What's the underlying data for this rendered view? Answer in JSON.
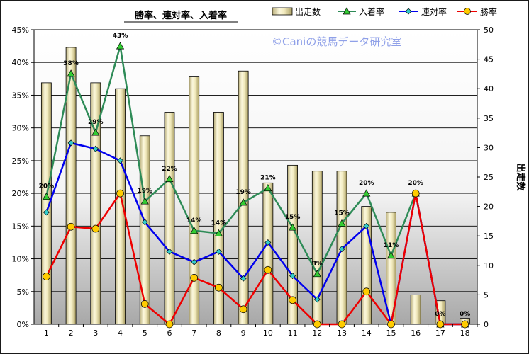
{
  "chart_data": {
    "type": "bar+line",
    "title": "勝率、連対率、入着率",
    "watermark": "©Caniの競馬データ研究室",
    "y2label": "出走数",
    "categories": [
      "1",
      "2",
      "3",
      "4",
      "5",
      "6",
      "7",
      "8",
      "9",
      "10",
      "11",
      "12",
      "13",
      "14",
      "15",
      "16",
      "17",
      "18"
    ],
    "yticks_left": [
      "0%",
      "5%",
      "10%",
      "15%",
      "20%",
      "25%",
      "30%",
      "35%",
      "40%",
      "45%"
    ],
    "yticks_right": [
      "0",
      "5",
      "10",
      "15",
      "20",
      "25",
      "30",
      "35",
      "40",
      "45",
      "50"
    ],
    "ylim_left": [
      0,
      45
    ],
    "ylim_right": [
      0,
      50
    ],
    "bars": {
      "name": "出走数",
      "values": [
        41,
        47,
        41,
        40,
        32,
        36,
        42,
        36,
        43,
        24,
        27,
        26,
        26,
        20,
        19,
        5,
        4,
        1
      ],
      "color": "#f0e8b8"
    },
    "series": [
      {
        "name": "入着率",
        "values": [
          19.5,
          38.3,
          29.3,
          42.5,
          18.8,
          22.2,
          14.3,
          13.9,
          18.6,
          20.8,
          14.8,
          7.7,
          15.4,
          20.0,
          10.5,
          20.0,
          0.0,
          0.0
        ],
        "labels": [
          "20%",
          "38%",
          "29%",
          "43%",
          "19%",
          "22%",
          "14%",
          "14%",
          "19%",
          "21%",
          "15%",
          "8%",
          "15%",
          "20%",
          "11%",
          "20%",
          "0%",
          "0%"
        ],
        "color": "#2e8b57",
        "marker_fill": "#33cc33"
      },
      {
        "name": "連対率",
        "values": [
          17.1,
          27.7,
          26.8,
          25.0,
          15.6,
          11.1,
          9.5,
          11.1,
          7.0,
          12.5,
          7.4,
          3.8,
          11.5,
          15.0,
          0.0,
          20.0,
          0.0,
          0.0
        ],
        "color": "#0000ee",
        "marker_fill": "#33cccc"
      },
      {
        "name": "勝率",
        "values": [
          7.3,
          14.9,
          14.6,
          20.0,
          3.1,
          0.0,
          7.1,
          5.6,
          2.3,
          8.3,
          3.7,
          0.0,
          0.0,
          5.0,
          0.0,
          20.0,
          0.0,
          0.0
        ],
        "color": "#ee0000",
        "marker_fill": "#ffcc00"
      }
    ]
  }
}
